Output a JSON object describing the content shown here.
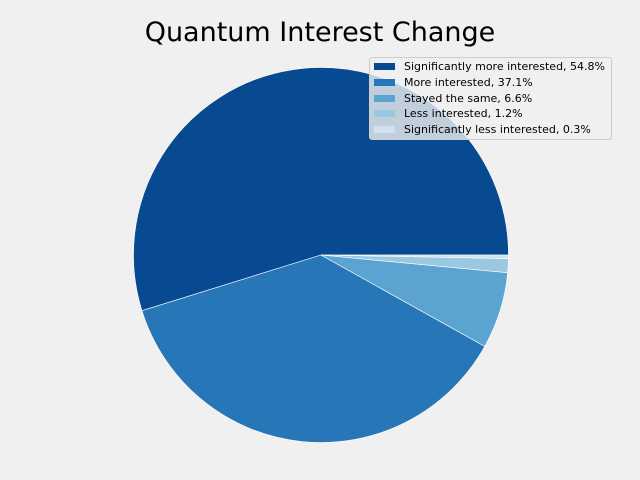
{
  "chart_data": {
    "type": "pie",
    "title": "Quantum Interest Change",
    "slices": [
      {
        "label": "Significantly more interested, 54.8%",
        "value": 54.8,
        "color": "#084a91"
      },
      {
        "label": "More interested, 37.1%",
        "value": 37.1,
        "color": "#2777b8"
      },
      {
        "label": "Stayed the same, 6.6%",
        "value": 6.6,
        "color": "#5ba3d0"
      },
      {
        "label": "Less interested, 1.2%",
        "value": 1.2,
        "color": "#9ac8e0"
      },
      {
        "label": "Significantly less interested, 0.3%",
        "value": 0.3,
        "color": "#d0e1f2"
      }
    ],
    "start_angle_deg": 0,
    "direction": "counterclockwise",
    "legend": "upper-right",
    "edge_color": "#ffffff"
  }
}
